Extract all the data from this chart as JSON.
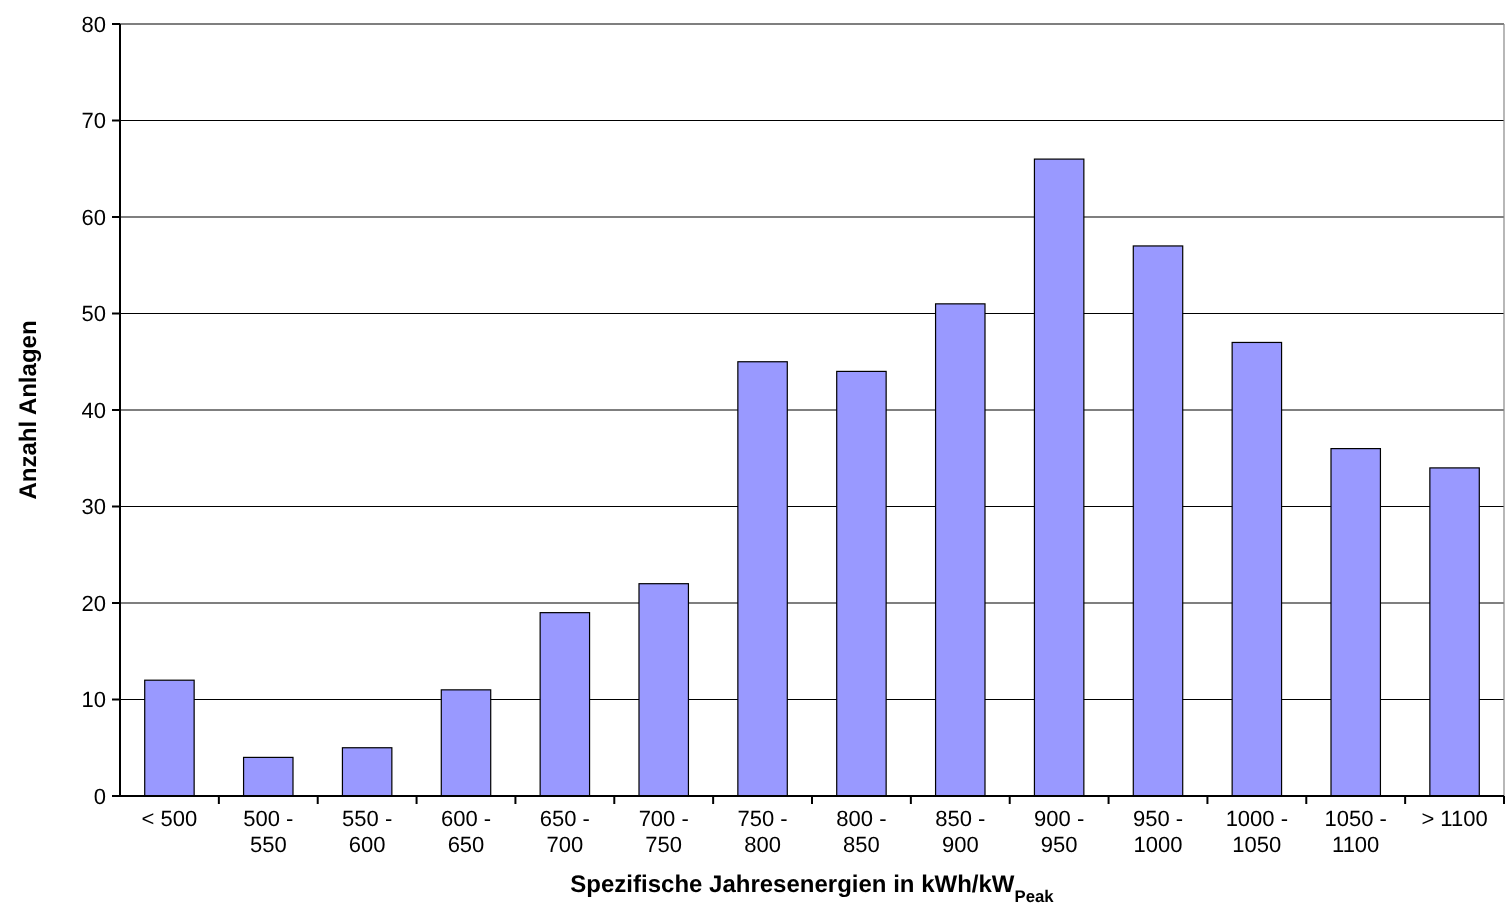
{
  "chart_data": {
    "type": "bar",
    "xlabel": "Spezifische Jahresenergien in kWh/kW$_{Peak}$",
    "ylabel": "Anzahl Anlagen",
    "categories": [
      "< 500",
      "500 - 550",
      "550 - 600",
      "600 - 650",
      "650 - 700",
      "700 - 750",
      "750 - 800",
      "800 - 850",
      "850 - 900",
      "900 - 950",
      "950 - 1000",
      "1000 - 1050",
      "1050 - 1100",
      "> 1100"
    ],
    "values": [
      12,
      4,
      5,
      11,
      19,
      22,
      45,
      44,
      51,
      66,
      57,
      47,
      36,
      34
    ],
    "color": "#9999ff",
    "ylim": [
      0,
      80
    ],
    "yticks": [
      0,
      10,
      20,
      30,
      40,
      50,
      60,
      70,
      80
    ],
    "grid": "y"
  }
}
